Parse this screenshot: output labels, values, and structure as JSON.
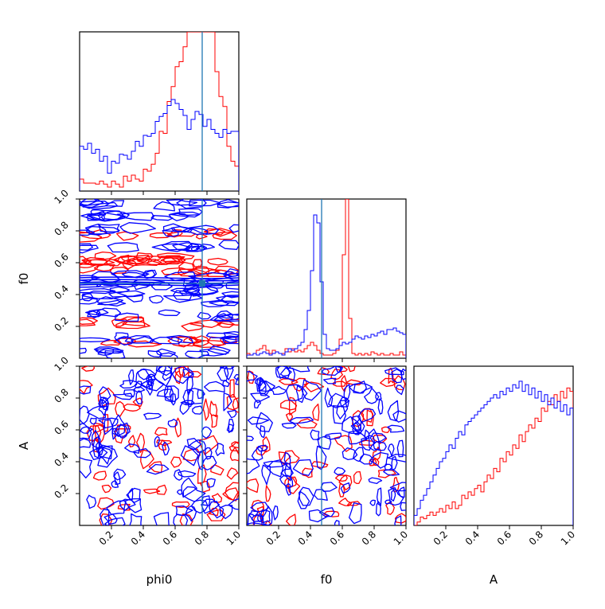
{
  "chart_data": {
    "type": "corner",
    "parameters": [
      "phi0",
      "f0",
      "A"
    ],
    "truth": {
      "phi0": 0.77,
      "f0": 0.47
    },
    "colors": {
      "series_a": "#ff0000",
      "series_b": "#0000ff",
      "truth": "#1f77b4"
    },
    "tick_labels": [
      "0.2",
      "0.4",
      "0.6",
      "0.8",
      "1.0"
    ],
    "xlabels": [
      "phi0",
      "f0",
      "A"
    ],
    "ylabels": {
      "f0": "f0",
      "A": "A"
    },
    "marginals": {
      "phi0": {
        "bins": 40,
        "red": [
          0.12,
          0.08,
          0.08,
          0.08,
          0.07,
          0.1,
          0.07,
          0.04,
          0.1,
          0.07,
          0.04,
          0.15,
          0.1,
          0.16,
          0.12,
          0.1,
          0.22,
          0.2,
          0.27,
          0.38,
          0.6,
          0.58,
          0.9,
          1.05,
          1.25,
          1.3,
          1.45,
          1.6,
          1.7,
          1.85,
          1.6,
          1.9,
          1.85,
          1.75,
          1.2,
          0.95,
          0.85,
          0.45,
          0.3,
          0.25
        ],
        "blue": [
          0.45,
          0.42,
          0.48,
          0.38,
          0.42,
          0.3,
          0.35,
          0.18,
          0.3,
          0.28,
          0.37,
          0.36,
          0.32,
          0.4,
          0.5,
          0.45,
          0.56,
          0.55,
          0.58,
          0.7,
          0.75,
          0.78,
          0.86,
          0.92,
          0.88,
          0.82,
          0.76,
          0.62,
          0.72,
          0.8,
          0.77,
          0.65,
          0.72,
          0.62,
          0.58,
          0.54,
          0.62,
          0.58,
          0.6,
          0.6
        ]
      },
      "f0": {
        "bins": 50,
        "red": [
          0.03,
          0.02,
          0.03,
          0.05,
          0.06,
          0.08,
          0.05,
          0.03,
          0.05,
          0.04,
          0.03,
          0.03,
          0.06,
          0.04,
          0.06,
          0.04,
          0.05,
          0.04,
          0.06,
          0.08,
          0.1,
          0.08,
          0.05,
          0.03,
          0.02,
          0.02,
          0.02,
          0.03,
          0.05,
          0.12,
          0.65,
          1.15,
          0.25,
          0.03,
          0.02,
          0.03,
          0.02,
          0.03,
          0.02,
          0.04,
          0.03,
          0.02,
          0.03,
          0.02,
          0.02,
          0.03,
          0.02,
          0.02,
          0.04,
          0.02
        ],
        "blue": [
          0.02,
          0.02,
          0.03,
          0.02,
          0.03,
          0.04,
          0.03,
          0.02,
          0.03,
          0.04,
          0.03,
          0.02,
          0.04,
          0.06,
          0.05,
          0.06,
          0.08,
          0.1,
          0.18,
          0.3,
          0.55,
          0.9,
          0.85,
          0.48,
          0.15,
          0.06,
          0.05,
          0.05,
          0.06,
          0.08,
          0.1,
          0.09,
          0.1,
          0.12,
          0.14,
          0.13,
          0.12,
          0.14,
          0.13,
          0.15,
          0.14,
          0.16,
          0.17,
          0.15,
          0.18,
          0.18,
          0.19,
          0.17,
          0.16,
          0.15
        ]
      },
      "A": {
        "bins": 50,
        "red": [
          0.0,
          0.02,
          0.05,
          0.04,
          0.06,
          0.08,
          0.06,
          0.08,
          0.1,
          0.08,
          0.12,
          0.1,
          0.14,
          0.1,
          0.12,
          0.18,
          0.16,
          0.2,
          0.18,
          0.22,
          0.24,
          0.2,
          0.26,
          0.3,
          0.28,
          0.34,
          0.32,
          0.4,
          0.38,
          0.44,
          0.42,
          0.48,
          0.46,
          0.54,
          0.5,
          0.56,
          0.6,
          0.58,
          0.64,
          0.62,
          0.7,
          0.68,
          0.74,
          0.72,
          0.78,
          0.74,
          0.8,
          0.76,
          0.82,
          0.8
        ],
        "blue": [
          0.06,
          0.1,
          0.15,
          0.18,
          0.22,
          0.26,
          0.3,
          0.34,
          0.38,
          0.4,
          0.44,
          0.48,
          0.46,
          0.52,
          0.56,
          0.54,
          0.6,
          0.62,
          0.64,
          0.66,
          0.68,
          0.7,
          0.72,
          0.74,
          0.76,
          0.78,
          0.76,
          0.8,
          0.78,
          0.82,
          0.8,
          0.84,
          0.82,
          0.86,
          0.8,
          0.84,
          0.78,
          0.82,
          0.76,
          0.8,
          0.74,
          0.78,
          0.72,
          0.76,
          0.7,
          0.74,
          0.68,
          0.72,
          0.66,
          0.7
        ]
      }
    }
  }
}
